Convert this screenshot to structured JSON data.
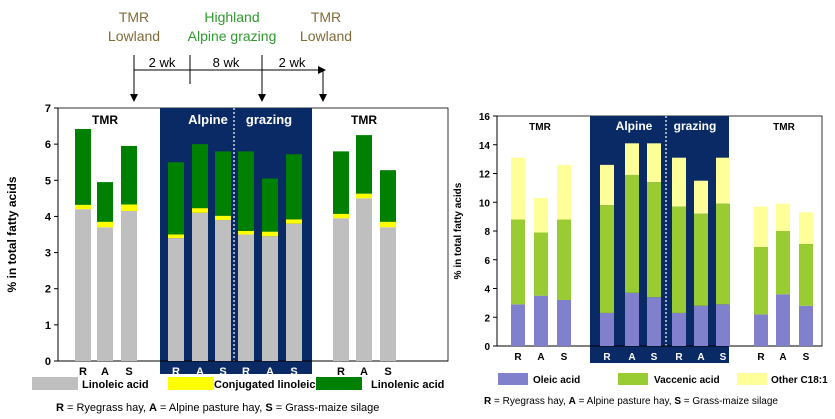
{
  "header": {
    "phases": [
      {
        "line1": "TMR",
        "line2": "Lowland",
        "color": "#7f6a3a"
      },
      {
        "line1": "Highland",
        "line2": "Alpine grazing",
        "color": "#2e9a2e"
      },
      {
        "line1": "TMR",
        "line2": "Lowland",
        "color": "#7f6a3a"
      }
    ],
    "durations": [
      "2 wk",
      "8 wk",
      "2 wk"
    ]
  },
  "colors": {
    "linoleic": "#bfbfbf",
    "cla": "#ffff00",
    "linolenic": "#008000",
    "oleic": "#8080cc",
    "vaccenic": "#99cc33",
    "other": "#ffff99",
    "alpine_band": "#0a2a66"
  },
  "chart_data": [
    {
      "type": "bar",
      "stacked": true,
      "ylabel": "% in total fatty acids",
      "ylim": [
        0,
        7
      ],
      "yticks": [
        0,
        1,
        2,
        3,
        4,
        5,
        6,
        7
      ],
      "grid": false,
      "panel_labels": [
        "TMR",
        "Alpine",
        "grazing",
        "TMR"
      ],
      "categories": [
        "R",
        "A",
        "S",
        "R",
        "A",
        "S",
        "R",
        "A",
        "S",
        "R",
        "A",
        "S"
      ],
      "series": [
        {
          "name": "Linoleic acid",
          "color": "#bfbfbf",
          "values": [
            4.2,
            3.7,
            4.15,
            3.4,
            4.1,
            3.9,
            3.5,
            3.45,
            3.8,
            3.95,
            4.5,
            3.7
          ]
        },
        {
          "name": "Conjugated linoleic acids",
          "color": "#ffff00",
          "values": [
            0.12,
            0.15,
            0.18,
            0.1,
            0.13,
            0.12,
            0.1,
            0.13,
            0.12,
            0.12,
            0.13,
            0.15
          ]
        },
        {
          "name": "Linolenic acid",
          "color": "#008000",
          "values": [
            2.1,
            1.1,
            1.62,
            2.0,
            1.77,
            1.78,
            2.2,
            1.47,
            1.8,
            1.73,
            1.62,
            1.43
          ]
        }
      ],
      "footnote": {
        "R": "Ryegrass hay",
        "A": "Alpine pasture hay",
        "S": "Grass-maize silage"
      }
    },
    {
      "type": "bar",
      "stacked": true,
      "ylabel": "% in total fatty acids",
      "ylim": [
        0,
        16
      ],
      "yticks": [
        0,
        2,
        4,
        6,
        8,
        10,
        12,
        14,
        16
      ],
      "grid": false,
      "panel_labels": [
        "TMR",
        "Alpine",
        "grazing",
        "TMR"
      ],
      "categories": [
        "R",
        "A",
        "S",
        "R",
        "A",
        "S",
        "R",
        "A",
        "S",
        "R",
        "A",
        "S"
      ],
      "series": [
        {
          "name": "Oleic acid",
          "color": "#8080cc",
          "values": [
            2.9,
            3.5,
            3.2,
            2.3,
            3.7,
            3.4,
            2.3,
            2.8,
            2.9,
            2.2,
            3.6,
            2.8
          ]
        },
        {
          "name": "Vaccenic acid",
          "color": "#99cc33",
          "values": [
            5.9,
            4.4,
            5.6,
            7.5,
            8.2,
            8.0,
            7.4,
            6.4,
            7.0,
            4.7,
            4.4,
            4.3
          ]
        },
        {
          "name": "Other C18:1",
          "color": "#ffff99",
          "values": [
            4.3,
            2.4,
            3.8,
            2.8,
            2.2,
            2.7,
            3.4,
            2.3,
            3.2,
            2.8,
            1.9,
            2.2
          ]
        }
      ],
      "footnote": {
        "R": "Ryegrass hay",
        "A": "Alpine pasture hay",
        "S": "Grass-maize silage"
      }
    }
  ]
}
